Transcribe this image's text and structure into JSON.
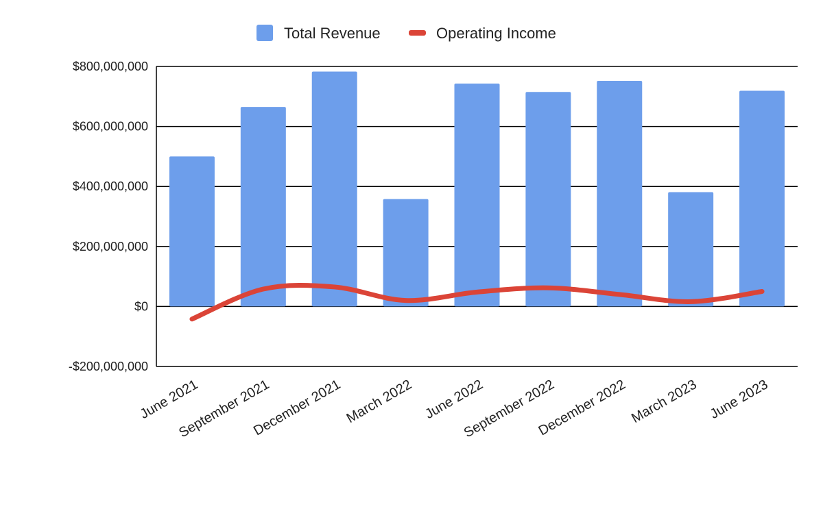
{
  "chart_data": {
    "type": "bar",
    "title": "",
    "xlabel": "",
    "ylabel": "",
    "categories": [
      "June 2021",
      "September 2021",
      "December 2021",
      "March 2022",
      "June 2022",
      "September 2022",
      "December 2022",
      "March 2023",
      "June 2023"
    ],
    "series": [
      {
        "name": "Total Revenue",
        "type": "bar",
        "color": "#6d9eeb",
        "values": [
          500000000,
          665000000,
          783000000,
          358000000,
          743000000,
          715000000,
          752000000,
          381000000,
          719000000
        ]
      },
      {
        "name": "Operating Income",
        "type": "line",
        "color": "#db4437",
        "values": [
          -42000000,
          58000000,
          65000000,
          20000000,
          48000000,
          62000000,
          40000000,
          16000000,
          50000000
        ]
      }
    ],
    "ylim": [
      -200000000,
      800000000
    ],
    "yticks": [
      {
        "value": 800000000,
        "label": "$800,000,000"
      },
      {
        "value": 600000000,
        "label": "$600,000,000"
      },
      {
        "value": 400000000,
        "label": "$400,000,000"
      },
      {
        "value": 200000000,
        "label": "$200,000,000"
      },
      {
        "value": 0,
        "label": "$0"
      },
      {
        "value": -200000000,
        "label": "-$200,000,000"
      }
    ],
    "grid": true,
    "legend_position": "top"
  }
}
